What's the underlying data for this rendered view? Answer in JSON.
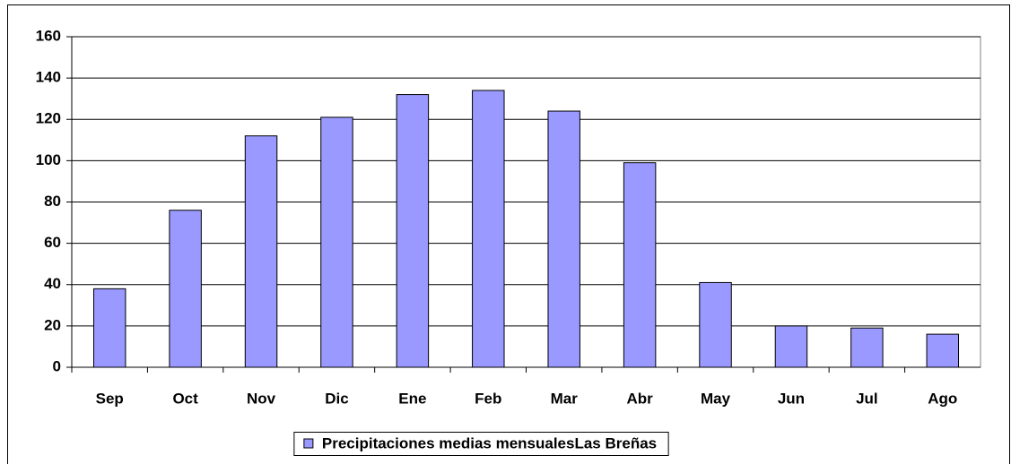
{
  "chart_data": {
    "type": "bar",
    "categories": [
      "Sep",
      "Oct",
      "Nov",
      "Dic",
      "Ene",
      "Feb",
      "Mar",
      "Abr",
      "May",
      "Jun",
      "Jul",
      "Ago"
    ],
    "series": [
      {
        "name": "Precipitaciones medias mensualesLas Breñas",
        "color": "#9999ff",
        "values": [
          38,
          76,
          112,
          121,
          132,
          134,
          124,
          99,
          41,
          20,
          19,
          16
        ]
      }
    ],
    "ylim": [
      0,
      160
    ],
    "yticks": [
      0,
      20,
      40,
      60,
      80,
      100,
      120,
      140,
      160
    ],
    "grid": true,
    "legend": "bottom"
  }
}
